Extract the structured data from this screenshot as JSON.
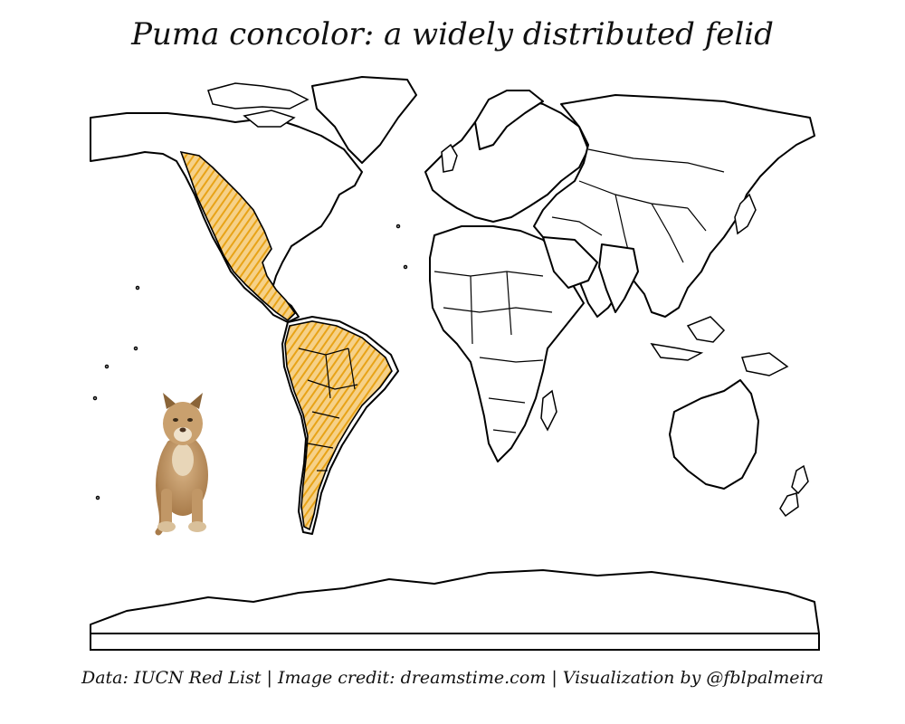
{
  "title": "Puma concolor: a widely distributed felid",
  "caption": {
    "data_source": "Data: IUCN Red List",
    "image_credit": "Image credit: dreamstime.com",
    "visualization": "Visualization by @fblpalmeira",
    "separator": " | "
  },
  "map": {
    "species": "Puma concolor",
    "range_color": "#e8a317",
    "outline_color": "#000000",
    "background_color": "#ffffff",
    "photo": "puma-photo"
  }
}
